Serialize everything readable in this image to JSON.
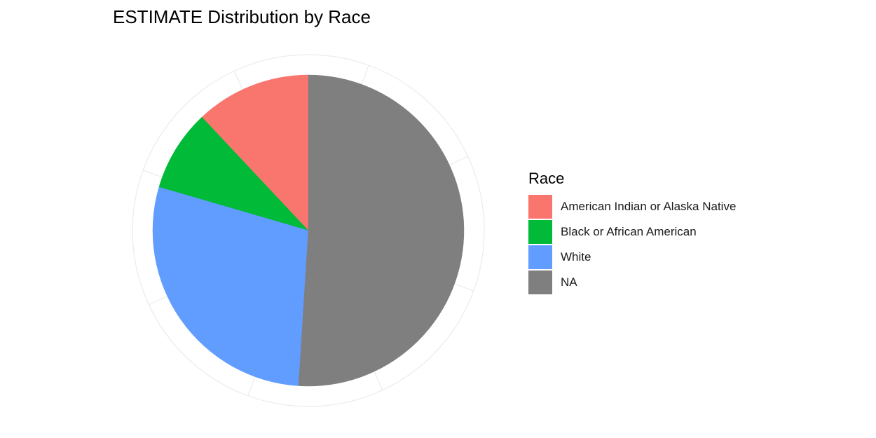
{
  "chart_data": {
    "type": "pie",
    "title": "ESTIMATE Distribution by Race",
    "legend_title": "Race",
    "legend_position": "right",
    "grid": true,
    "slices": [
      {
        "name": "American Indian or Alaska Native",
        "value": 12.0,
        "color": "#F8766D"
      },
      {
        "name": "Black or African American",
        "value": 8.5,
        "color": "#00BA38"
      },
      {
        "name": "White",
        "value": 28.5,
        "color": "#619CFF"
      },
      {
        "name": "NA",
        "value": 51.0,
        "color": "#7F7F7F"
      }
    ]
  }
}
